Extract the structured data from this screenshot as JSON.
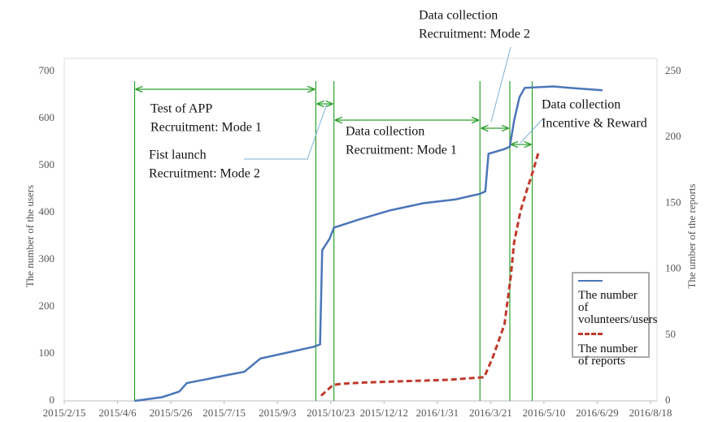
{
  "chart_data": {
    "type": "line",
    "y_label": "The number of the users",
    "y2_label": "The umber of the reports",
    "xlim": [
      "2015/2/15",
      "2016/8/18"
    ],
    "xticks": [
      "2015/2/15",
      "2015/4/6",
      "2015/5/26",
      "2015/7/15",
      "2015/9/3",
      "2015/10/23",
      "2015/12/12",
      "2016/1/31",
      "2016/3/21",
      "2016/5/10",
      "2016/6/29",
      "2016/8/18"
    ],
    "ylim": [
      0,
      700
    ],
    "yticks": [
      0,
      100,
      200,
      300,
      400,
      500,
      600,
      700
    ],
    "y2lim": [
      0,
      250
    ],
    "y2ticks": [
      0,
      50,
      100,
      150,
      200,
      250
    ],
    "grid": false,
    "legend": "lower right",
    "phase_dates": [
      "2015/4/22",
      "2015/10/9",
      "2015/10/26",
      "2016/3/11",
      "2016/4/8",
      "2016/4/29"
    ],
    "annotations": [
      {
        "lines": [
          "Test of APP",
          "Recruitment: Mode 1"
        ]
      },
      {
        "lines": [
          "Fist launch",
          "Recruitment: Mode 2"
        ]
      },
      {
        "lines": [
          "Data collection",
          "Recruitment: Mode 1"
        ]
      },
      {
        "lines": [
          "Data collection",
          "Recruitment: Mode 2"
        ]
      },
      {
        "lines": [
          "Data collection",
          "Incentive & Reward"
        ]
      }
    ],
    "series": [
      {
        "name": "The number of volunteers/users",
        "color": "#4a76b8",
        "style": "solid",
        "x": [
          "2015/4/22",
          "2015/5/18",
          "2015/6/3",
          "2015/6/10",
          "2015/7/3",
          "2015/7/18",
          "2015/8/3",
          "2015/8/18",
          "2015/9/17",
          "2015/10/7",
          "2015/10/13",
          "2015/10/15",
          "2015/10/22",
          "2015/10/26",
          "2015/11/18",
          "2015/12/18",
          "2016/1/18",
          "2016/2/17",
          "2016/3/11",
          "2016/3/16",
          "2016/3/19",
          "2016/4/3",
          "2016/4/8",
          "2016/4/12",
          "2016/4/17",
          "2016/4/22",
          "2016/5/19",
          "2016/6/3",
          "2016/7/4"
        ],
        "values": [
          0,
          8,
          20,
          38,
          48,
          55,
          62,
          90,
          105,
          115,
          120,
          320,
          345,
          368,
          385,
          405,
          420,
          428,
          440,
          445,
          525,
          535,
          540,
          595,
          645,
          665,
          668,
          665,
          660
        ]
      },
      {
        "name": "The number of reports",
        "color": "#c0392b",
        "style": "dashed",
        "axis": "y2",
        "x": [
          "2015/10/14",
          "2015/10/25",
          "2015/11/2",
          "2015/11/25",
          "2016/1/2",
          "2016/2/10",
          "2016/3/15",
          "2016/3/23",
          "2016/4/3",
          "2016/4/9",
          "2016/4/12",
          "2016/4/18",
          "2016/4/24",
          "2016/4/30",
          "2016/5/5"
        ],
        "values": [
          4,
          12,
          13,
          14,
          15,
          16,
          18,
          33,
          58,
          95,
          120,
          144,
          160,
          175,
          189
        ]
      }
    ]
  }
}
